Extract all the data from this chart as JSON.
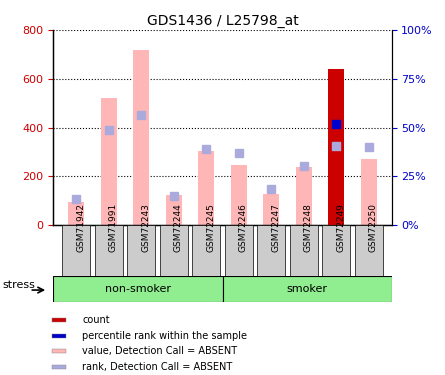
{
  "title": "GDS1436 / L25798_at",
  "samples": [
    "GSM71942",
    "GSM71991",
    "GSM72243",
    "GSM72244",
    "GSM72245",
    "GSM72246",
    "GSM72247",
    "GSM72248",
    "GSM72249",
    "GSM72250"
  ],
  "value_absent": [
    95,
    520,
    720,
    125,
    305,
    248,
    128,
    240,
    270,
    270
  ],
  "rank_absent": [
    107,
    390,
    452,
    120,
    310,
    297,
    148,
    243,
    323,
    318
  ],
  "count_present": [
    null,
    null,
    null,
    null,
    null,
    null,
    null,
    null,
    638,
    null
  ],
  "count_rank_present": [
    null,
    null,
    null,
    null,
    null,
    null,
    null,
    null,
    415,
    null
  ],
  "ylim_left": [
    0,
    800
  ],
  "ylim_right": [
    0,
    100
  ],
  "yticks_left": [
    0,
    200,
    400,
    600,
    800
  ],
  "yticks_right": [
    0,
    25,
    50,
    75,
    100
  ],
  "ytick_labels_right": [
    "0%",
    "25%",
    "50%",
    "75%",
    "100%"
  ],
  "group_label_non_smoker": "non-smoker",
  "group_label_smoker": "smoker",
  "stress_label": "stress",
  "color_value_absent": "#FFB6B6",
  "color_rank_absent": "#AAAADD",
  "color_count_present": "#CC0000",
  "color_rank_present": "#0000CC",
  "legend_items": [
    {
      "label": "count",
      "color": "#CC0000"
    },
    {
      "label": "percentile rank within the sample",
      "color": "#0000CC"
    },
    {
      "label": "value, Detection Call = ABSENT",
      "color": "#FFB6B6"
    },
    {
      "label": "rank, Detection Call = ABSENT",
      "color": "#AAAADD"
    }
  ],
  "group_color": "#90EE90",
  "tick_label_color_left": "#CC0000",
  "tick_label_color_right": "#0000CC",
  "xtick_bg_color": "#CCCCCC"
}
